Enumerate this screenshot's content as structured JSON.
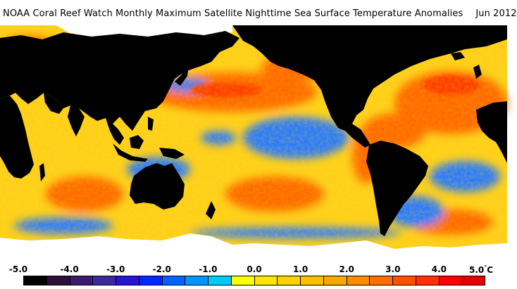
{
  "header": {
    "title": "NOAA Coral Reef Watch Monthly Maximum Satellite Nighttime Sea Surface Temperature Anomalies",
    "date": "Jun 2012"
  },
  "legend": {
    "ticks": [
      "-5.0",
      "-4.0",
      "-3.0",
      "-2.0",
      "-1.0",
      "0.0",
      "1.0",
      "2.0",
      "3.0",
      "4.0",
      "5.0"
    ],
    "unit": "°C",
    "colors": [
      "#000000",
      "#2e0f3c",
      "#3c1a6e",
      "#3c28a0",
      "#2814d2",
      "#0028ff",
      "#0064ff",
      "#0096ff",
      "#00c8ff",
      "#ffff00",
      "#ffe600",
      "#ffd200",
      "#ffbe00",
      "#ffa500",
      "#ff8c00",
      "#ff6e00",
      "#ff5000",
      "#ff3200",
      "#ff0000",
      "#e60000"
    ]
  },
  "map": {
    "land_color": "#000000",
    "ice_color": "#ffffff",
    "ocean_base_color": "#ffd21e",
    "warm_color": "#ff6a00",
    "cool_color": "#2a7dff"
  }
}
